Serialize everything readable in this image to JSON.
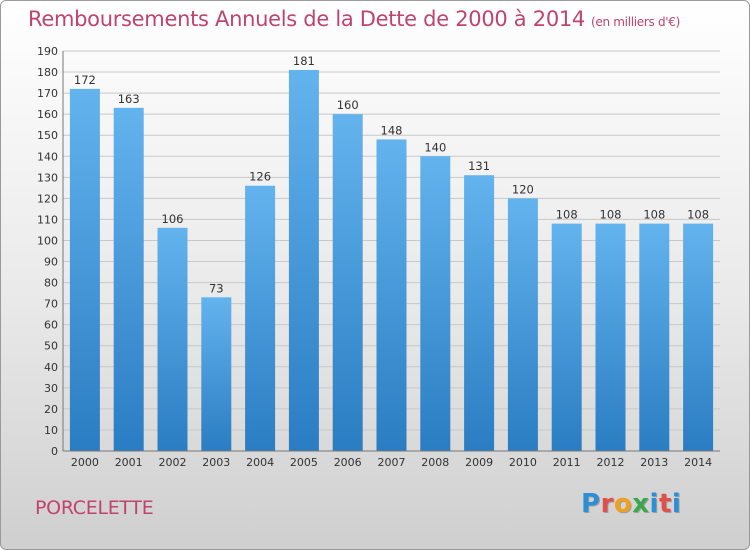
{
  "page": {
    "title": "Remboursements Annuels de la Dette de 2000 à 2014",
    "subtitle": "(en milliers d'€)",
    "commune": "PORCELETTE",
    "logo": "Proxiti"
  },
  "colors": {
    "title": "#c0436f",
    "bar_light": "#63b3ee",
    "bar_dark": "#2a7dc2",
    "grid": "#c8c8c8",
    "logo_letters": [
      "#2c8fd6",
      "#e0504a",
      "#f0a020",
      "#3aa84a",
      "#2c8fd6",
      "#e0504a",
      "#2c8fd6"
    ]
  },
  "chart_data": {
    "type": "bar",
    "title": "Remboursements Annuels de la Dette de 2000 à 2014",
    "subtitle": "(en milliers d'€)",
    "xlabel": "",
    "ylabel": "",
    "ylim": [
      0,
      190
    ],
    "ytick_step": 10,
    "grid": true,
    "categories": [
      "2000",
      "2001",
      "2002",
      "2003",
      "2004",
      "2005",
      "2006",
      "2007",
      "2008",
      "2009",
      "2010",
      "2011",
      "2012",
      "2013",
      "2014"
    ],
    "values": [
      172,
      163,
      106,
      73,
      126,
      181,
      160,
      148,
      140,
      131,
      120,
      108,
      108,
      108,
      108
    ]
  }
}
